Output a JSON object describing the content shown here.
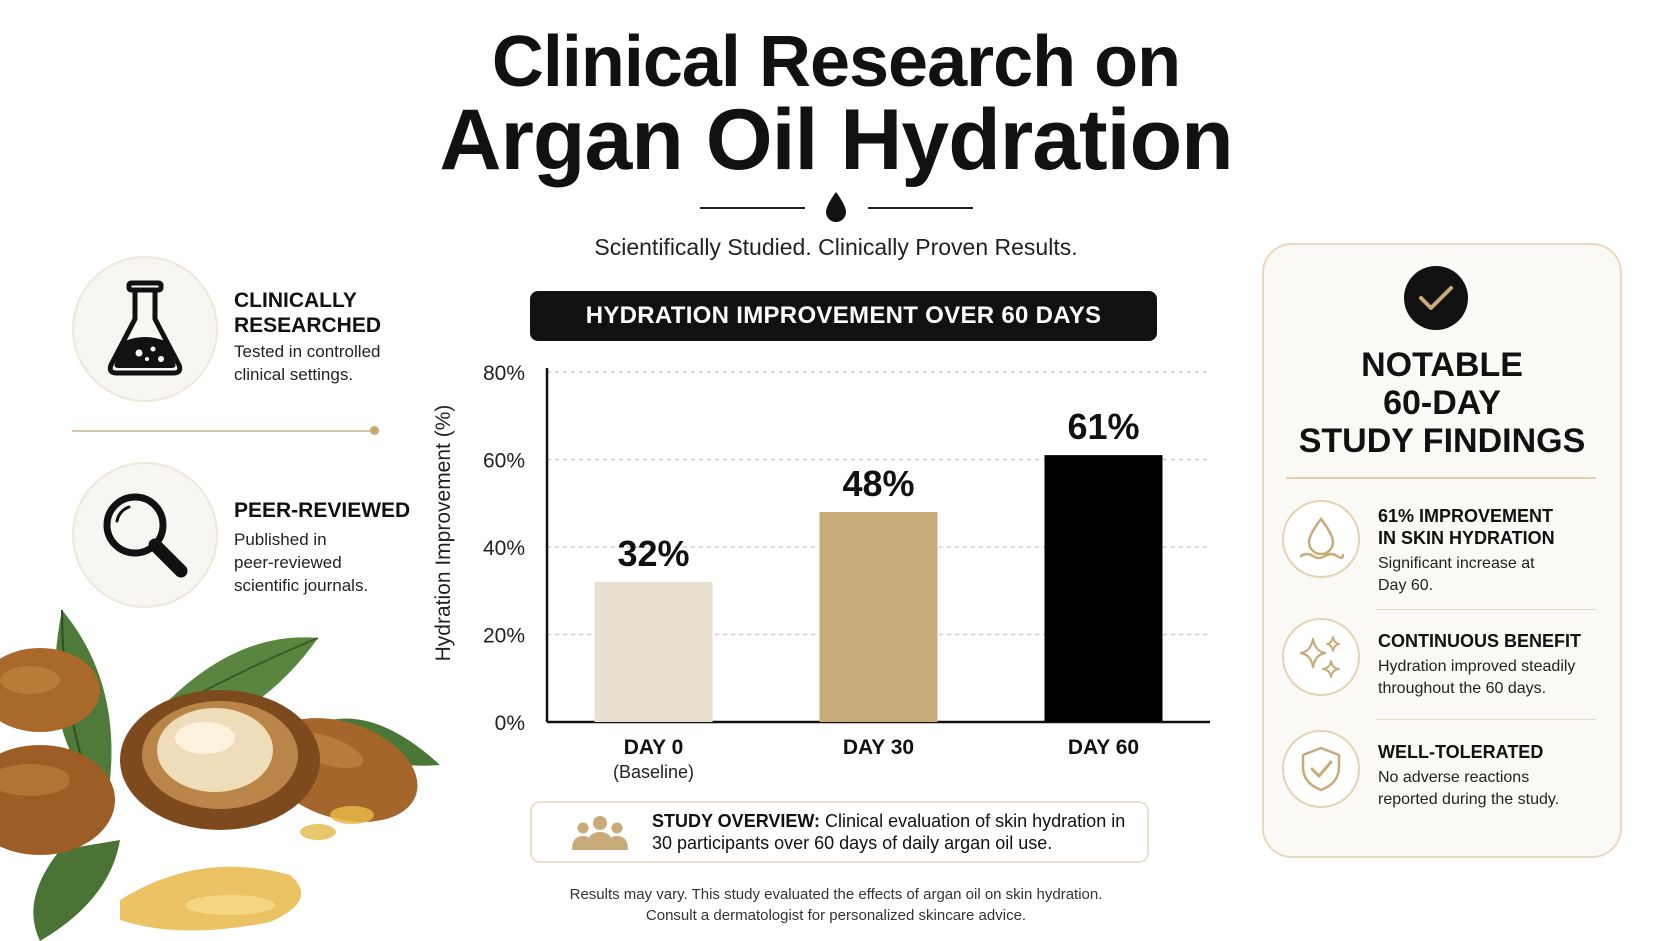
{
  "header": {
    "title_line1": "Clinical Research on",
    "title_line2": "Argan Oil Hydration",
    "subtitle": "Scientifically Studied. Clinically Proven Results.",
    "divider_icon": "drop-icon"
  },
  "left_features": [
    {
      "icon": "flask-icon",
      "title": "CLINICALLY\nRESEARCHED",
      "description": "Tested in controlled\nclinical settings."
    },
    {
      "icon": "magnifier-icon",
      "title": "PEER-REVIEWED",
      "description": "Published in\npeer-reviewed\nscientific journals."
    }
  ],
  "chart_banner": "HYDRATION IMPROVEMENT OVER 60 DAYS",
  "chart_data": {
    "type": "bar",
    "categories": [
      "DAY 0",
      "DAY 30",
      "DAY 60"
    ],
    "category_sublabels": [
      "(Baseline)",
      "",
      ""
    ],
    "values": [
      32,
      48,
      61
    ],
    "data_labels": [
      "32%",
      "48%",
      "61%"
    ],
    "bar_colors": [
      "#e8dfd0",
      "#c8ab78",
      "#000000"
    ],
    "title": "HYDRATION IMPROVEMENT OVER 60 DAYS",
    "xlabel": "",
    "ylabel": "Hydration Improvement (%)",
    "ylim": [
      0,
      80
    ],
    "yticks": [
      0,
      20,
      40,
      60,
      80
    ],
    "ytick_labels": [
      "0%",
      "20%",
      "40%",
      "60%",
      "80%"
    ],
    "grid": true
  },
  "study_overview": {
    "icon": "people-icon",
    "label": "STUDY OVERVIEW:",
    "text": " Clinical evaluation of skin hydration in 30 participants over 60 days of daily argan oil use."
  },
  "footnote": {
    "line1": "Results may vary. This study evaluated the effects of argan oil on skin hydration.",
    "line2": "Consult a dermatologist for personalized skincare advice."
  },
  "findings_panel": {
    "badge_icon": "checkmark-icon",
    "title": "NOTABLE\n60-DAY\nSTUDY FINDINGS",
    "items": [
      {
        "icon": "water-drop-icon",
        "title": "61% IMPROVEMENT\nIN SKIN HYDRATION",
        "description": "Significant increase at\nDay 60."
      },
      {
        "icon": "sparkle-icon",
        "title": "CONTINUOUS BENEFIT",
        "description": "Hydration improved steadily\nthroughout the 60 days."
      },
      {
        "icon": "shield-check-icon",
        "title": "WELL-TOLERATED",
        "description": "No adverse reactions\nreported during the study."
      }
    ]
  },
  "colors": {
    "accent_gold": "#c8ab78",
    "light_beige": "#e8dfd0",
    "panel_border": "#ead9bd",
    "text_dark": "#111111"
  }
}
